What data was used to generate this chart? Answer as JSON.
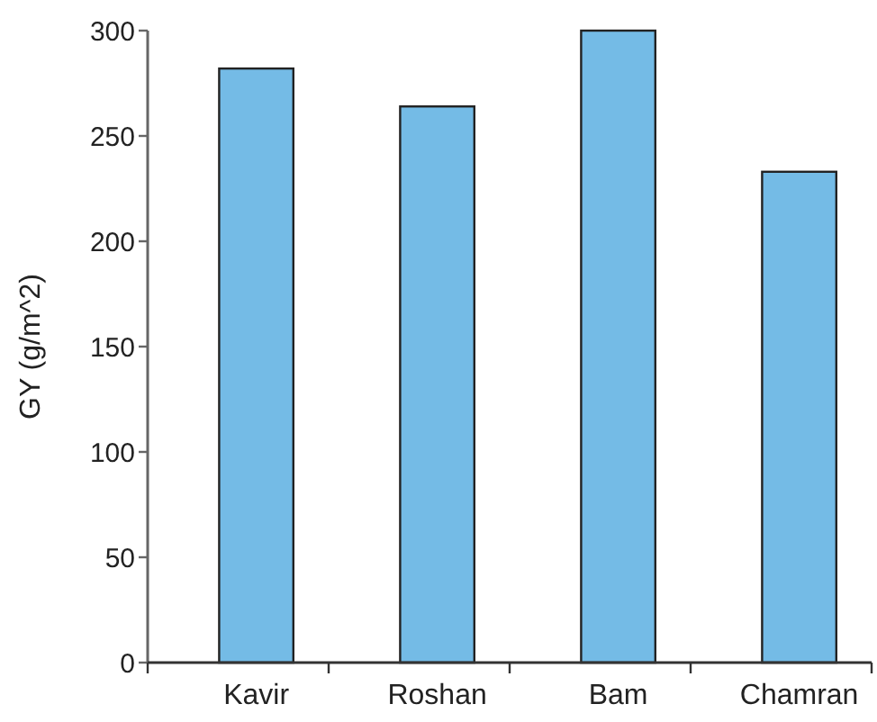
{
  "chart_data": {
    "type": "bar",
    "ylabel": "GY (g/m^2)",
    "categories": [
      "Kavir",
      "Roshan",
      "Bam",
      "Chamran"
    ],
    "values": [
      282,
      264,
      300,
      233
    ],
    "color": "#74bbe6",
    "ylim": [
      0,
      300
    ],
    "yticks": [
      0,
      50,
      100,
      150,
      200,
      250,
      300
    ],
    "grid": false
  }
}
